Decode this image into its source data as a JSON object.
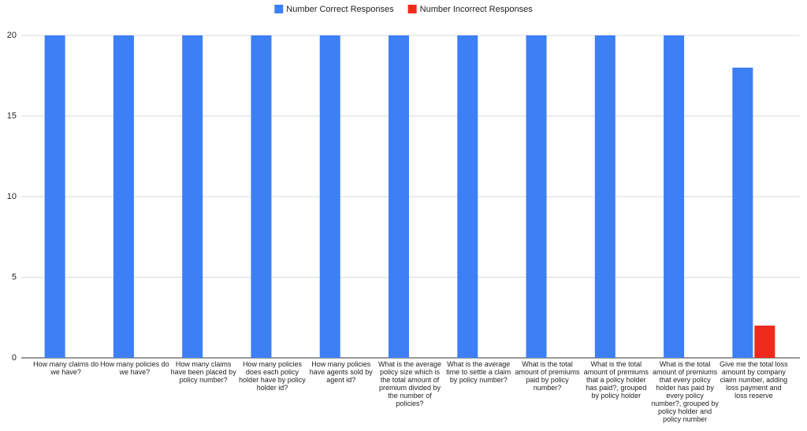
{
  "chart_data": {
    "type": "bar",
    "categories": [
      "How many claims do we have?",
      "How many policies do we have?",
      "How many claims have been placed by policy number?",
      "How many policies does each policy holder have by policy holder id?",
      "How many policies have agents sold by agent id?",
      "What is the average policy size which is the total amount of premium divided by the number of policies?",
      "What is the average time to settle a claim by policy number?",
      "What is the total amount of premiums paid by policy number?",
      "What is the total amount of premiums that a policy holder has paid?, grouped by policy holder",
      "What is the total amount of premiums that every policy holder has paid by every policy number?, grouped by policy holder and policy number",
      "Give me the total loss amount by company claim number, adding loss payment and loss reserve"
    ],
    "series": [
      {
        "name": "Number Correct Responses",
        "color": "#3d7ff5",
        "values": [
          20,
          20,
          20,
          20,
          20,
          20,
          20,
          20,
          20,
          20,
          18
        ]
      },
      {
        "name": "Number Incorrect Responses",
        "color": "#ee2a1c",
        "values": [
          0,
          0,
          0,
          0,
          0,
          0,
          0,
          0,
          0,
          0,
          2
        ]
      }
    ],
    "ylim": [
      0,
      20
    ],
    "yticks": [
      0,
      5,
      10,
      15,
      20
    ],
    "grid": true,
    "legend": "top"
  }
}
